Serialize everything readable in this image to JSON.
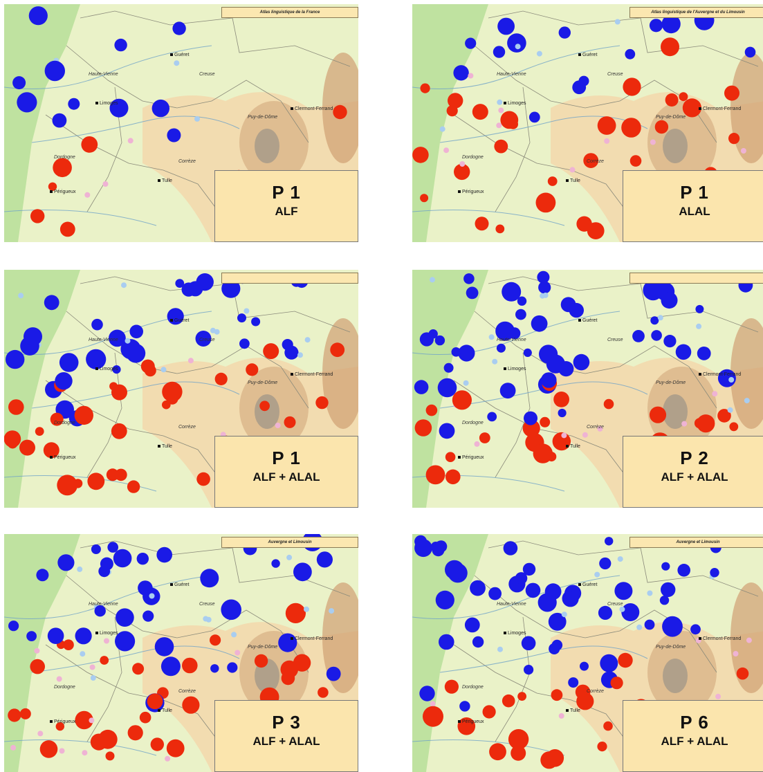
{
  "colors": {
    "blue": "#1a1ae6",
    "red": "#ec2a0c",
    "lightblue": "#a9cdf0",
    "pink": "#efb3d4"
  },
  "panels": [
    {
      "atlas_title": "Atlas linguistique de la France",
      "p_label": "P 1",
      "source": "ALF"
    },
    {
      "atlas_title": "Atlas linguistique de l'Auvergne et du Limousin",
      "p_label": "P 1",
      "source": "ALAL"
    },
    {
      "atlas_title": "",
      "p_label": "P 1",
      "source": "ALF + ALAL"
    },
    {
      "atlas_title": "",
      "p_label": "P 2",
      "source": "ALF + ALAL"
    },
    {
      "atlas_title": "Auvergne et Limousin",
      "p_label": "P 3",
      "source": "ALF + ALAL"
    },
    {
      "atlas_title": "Auvergne et Limousin",
      "p_label": "P 6",
      "source": "ALF + ALAL"
    }
  ],
  "places": {
    "haute_vienne": "Haute-Vienne",
    "creuse": "Creuse",
    "puy_de_dome": "Puy-de-Dôme",
    "dordogne": "Dordogne",
    "correze": "Corrèze",
    "limoges": "Limoges",
    "gueret": "Guéret",
    "tulle": "Tulle",
    "perigueux": "Périgueux",
    "clermont": "Clermont-Ferrand"
  }
}
